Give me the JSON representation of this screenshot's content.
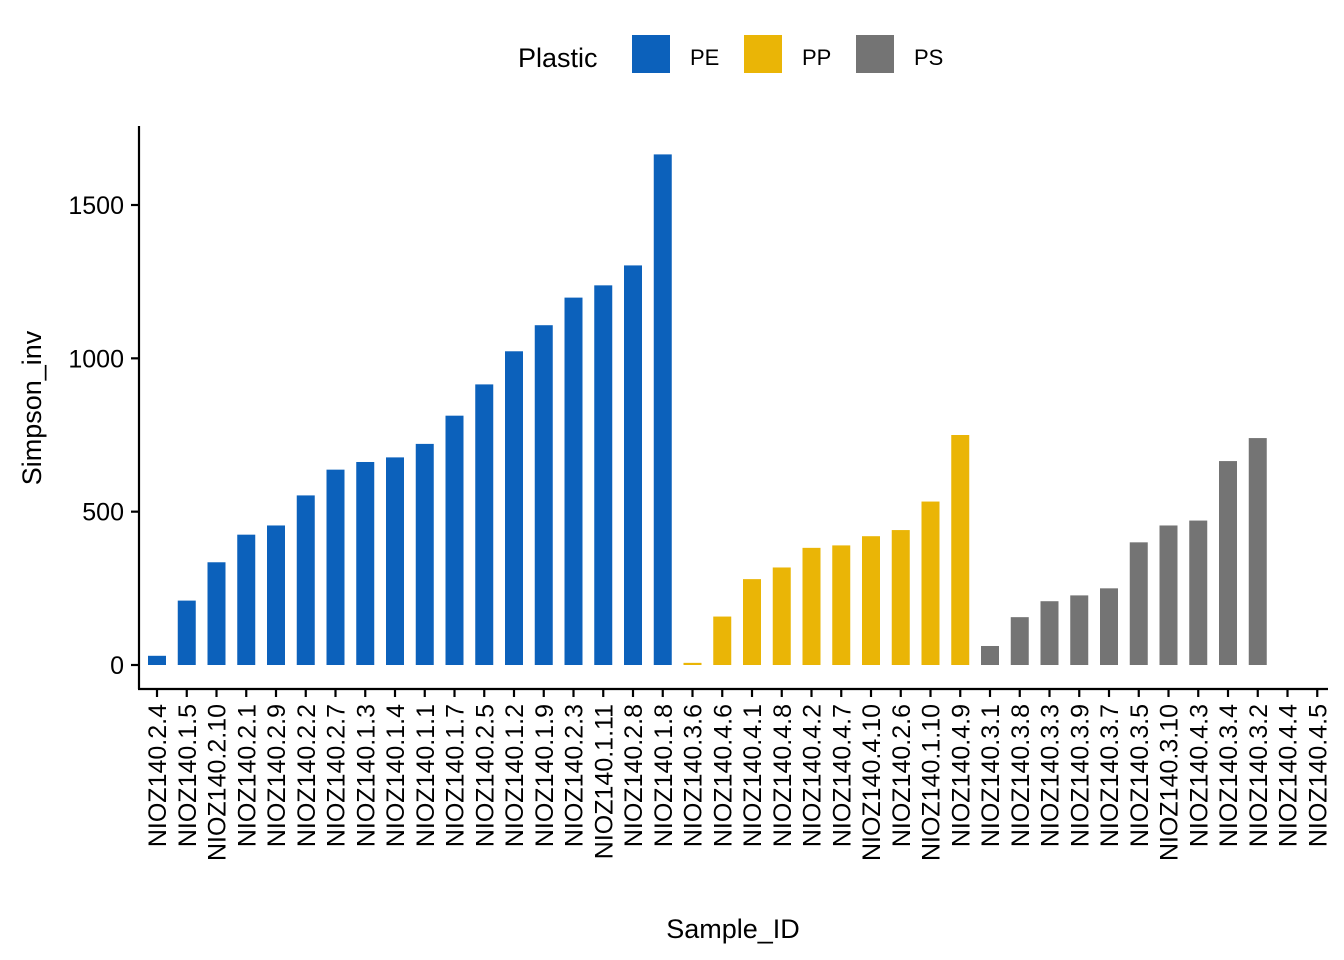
{
  "chart_data": {
    "type": "bar",
    "xlabel": "Sample_ID",
    "ylabel": "Simpson_inv",
    "ylim": [
      -70,
      1750
    ],
    "yticks": [
      0,
      500,
      1000,
      1500
    ],
    "grid": false,
    "legend": {
      "title": "Plastic",
      "position": "top",
      "entries": [
        {
          "name": "PE",
          "color": "#0C61BB"
        },
        {
          "name": "PP",
          "color": "#EAB506"
        },
        {
          "name": "PS",
          "color": "#747474"
        }
      ]
    },
    "bars": [
      {
        "id": "NIOZ140.2.4",
        "group": "PE",
        "value": 30
      },
      {
        "id": "NIOZ140.1.5",
        "group": "PE",
        "value": 210
      },
      {
        "id": "NIOZ140.2.10",
        "group": "PE",
        "value": 335
      },
      {
        "id": "NIOZ140.2.1",
        "group": "PE",
        "value": 425
      },
      {
        "id": "NIOZ140.2.9",
        "group": "PE",
        "value": 455
      },
      {
        "id": "NIOZ140.2.2",
        "group": "PE",
        "value": 553
      },
      {
        "id": "NIOZ140.2.7",
        "group": "PE",
        "value": 637
      },
      {
        "id": "NIOZ140.1.3",
        "group": "PE",
        "value": 662
      },
      {
        "id": "NIOZ140.1.4",
        "group": "PE",
        "value": 677
      },
      {
        "id": "NIOZ140.1.1",
        "group": "PE",
        "value": 721
      },
      {
        "id": "NIOZ140.1.7",
        "group": "PE",
        "value": 813
      },
      {
        "id": "NIOZ140.2.5",
        "group": "PE",
        "value": 915
      },
      {
        "id": "NIOZ140.1.2",
        "group": "PE",
        "value": 1023
      },
      {
        "id": "NIOZ140.1.9",
        "group": "PE",
        "value": 1108
      },
      {
        "id": "NIOZ140.2.3",
        "group": "PE",
        "value": 1198
      },
      {
        "id": "NIOZ140.1.11",
        "group": "PE",
        "value": 1238
      },
      {
        "id": "NIOZ140.2.8",
        "group": "PE",
        "value": 1303
      },
      {
        "id": "NIOZ140.1.8",
        "group": "PE",
        "value": 1665
      },
      {
        "id": "NIOZ140.3.6",
        "group": "PP",
        "value": 7
      },
      {
        "id": "NIOZ140.4.6",
        "group": "PP",
        "value": 158
      },
      {
        "id": "NIOZ140.4.1",
        "group": "PP",
        "value": 280
      },
      {
        "id": "NIOZ140.4.8",
        "group": "PP",
        "value": 318
      },
      {
        "id": "NIOZ140.4.2",
        "group": "PP",
        "value": 382
      },
      {
        "id": "NIOZ140.4.7",
        "group": "PP",
        "value": 390
      },
      {
        "id": "NIOZ140.4.10",
        "group": "PP",
        "value": 420
      },
      {
        "id": "NIOZ140.2.6",
        "group": "PP",
        "value": 440
      },
      {
        "id": "NIOZ140.1.10",
        "group": "PP",
        "value": 533
      },
      {
        "id": "NIOZ140.4.9",
        "group": "PP",
        "value": 750
      },
      {
        "id": "NIOZ140.3.1",
        "group": "PS",
        "value": 62
      },
      {
        "id": "NIOZ140.3.8",
        "group": "PS",
        "value": 156
      },
      {
        "id": "NIOZ140.3.3",
        "group": "PS",
        "value": 208
      },
      {
        "id": "NIOZ140.3.9",
        "group": "PS",
        "value": 227
      },
      {
        "id": "NIOZ140.3.7",
        "group": "PS",
        "value": 250
      },
      {
        "id": "NIOZ140.3.5",
        "group": "PS",
        "value": 400
      },
      {
        "id": "NIOZ140.3.10",
        "group": "PS",
        "value": 455
      },
      {
        "id": "NIOZ140.4.3",
        "group": "PS",
        "value": 471
      },
      {
        "id": "NIOZ140.3.4",
        "group": "PS",
        "value": 665
      },
      {
        "id": "NIOZ140.3.2",
        "group": "PS",
        "value": 740
      },
      {
        "id": "NIOZ140.4.4",
        "group": "PS",
        "value": 0
      },
      {
        "id": "NIOZ140.4.5",
        "group": "PS",
        "value": 0
      }
    ]
  }
}
